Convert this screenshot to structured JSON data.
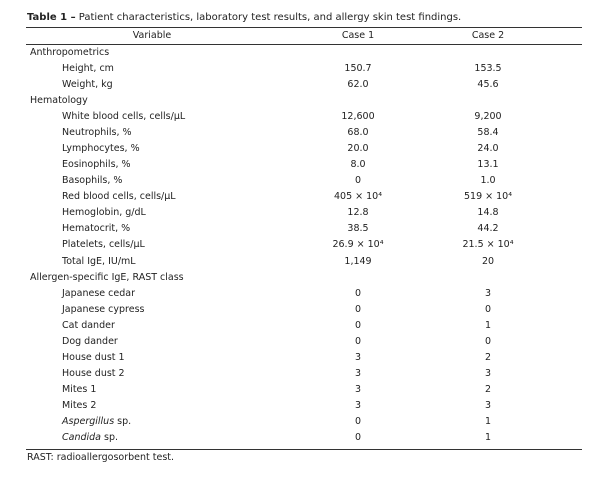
{
  "table": {
    "label": "Table 1 –",
    "caption": "Patient characteristics, laboratory test results, and allergy skin test findings.",
    "columns": [
      "Variable",
      "Case 1",
      "Case 2"
    ],
    "rows": [
      {
        "section": "Anthropometrics"
      },
      {
        "variable": "Height, cm",
        "case1": "150.7",
        "case2": "153.5"
      },
      {
        "variable": "Weight, kg",
        "case1": "62.0",
        "case2": "45.6"
      },
      {
        "section": "Hematology"
      },
      {
        "variable": "White blood cells, cells/μL",
        "case1": "12,600",
        "case2": "9,200"
      },
      {
        "variable": "Neutrophils, %",
        "case1": "68.0",
        "case2": "58.4"
      },
      {
        "variable": "Lymphocytes, %",
        "case1": "20.0",
        "case2": "24.0"
      },
      {
        "variable": "Eosinophils, %",
        "case1": "8.0",
        "case2": "13.1"
      },
      {
        "variable": "Basophils, %",
        "case1": "0",
        "case2": "1.0"
      },
      {
        "variable": "Red blood cells, cells/μL",
        "case1": "405 × 10⁴",
        "case2": "519 × 10⁴"
      },
      {
        "variable": "Hemoglobin, g/dL",
        "case1": "12.8",
        "case2": "14.8"
      },
      {
        "variable": "Hematocrit, %",
        "case1": "38.5",
        "case2": "44.2"
      },
      {
        "variable": "Platelets, cells/μL",
        "case1": "26.9 × 10⁴",
        "case2": "21.5 × 10⁴"
      },
      {
        "variable": "Total IgE, IU/mL",
        "case1": "1,149",
        "case2": "20"
      },
      {
        "section": "Allergen-specific IgE, RAST class"
      },
      {
        "variable": "Japanese cedar",
        "case1": "0",
        "case2": "3"
      },
      {
        "variable": "Japanese cypress",
        "case1": "0",
        "case2": "0"
      },
      {
        "variable": "Cat dander",
        "case1": "0",
        "case2": "1"
      },
      {
        "variable": "Dog dander",
        "case1": "0",
        "case2": "0"
      },
      {
        "variable": "House dust 1",
        "case1": "3",
        "case2": "2"
      },
      {
        "variable": "House dust 2",
        "case1": "3",
        "case2": "3"
      },
      {
        "variable": "Mites 1",
        "case1": "3",
        "case2": "2"
      },
      {
        "variable": "Mites 2",
        "case1": "3",
        "case2": "3"
      },
      {
        "variable": {
          "italic": "Aspergillus",
          "text": " sp."
        },
        "case1": "0",
        "case2": "1"
      },
      {
        "variable": {
          "italic": "Candida",
          "text": " sp."
        },
        "case1": "0",
        "case2": "1"
      }
    ],
    "footnote": "RAST: radioallergosorbent test."
  }
}
